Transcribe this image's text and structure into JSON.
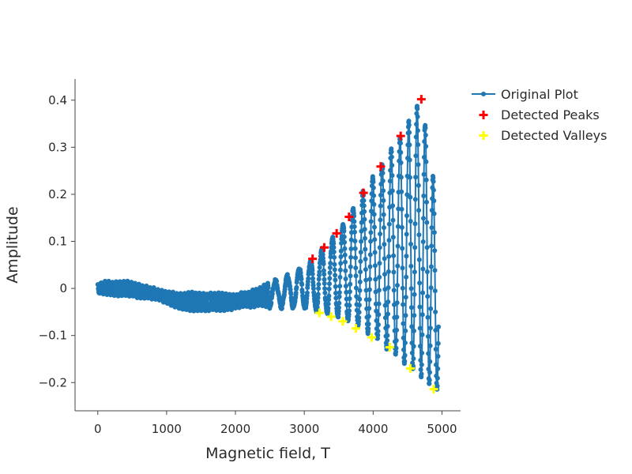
{
  "chart_data": {
    "type": "scatter",
    "title": "",
    "xlabel": "Magnetic field, T",
    "ylabel": "Amplitude",
    "xlim": [
      -330,
      5270
    ],
    "ylim": [
      -0.26,
      0.445
    ],
    "x_ticks": [
      0,
      1000,
      2000,
      3000,
      4000,
      5000
    ],
    "y_ticks": [
      -0.2,
      -0.1,
      0,
      0.1,
      0.2,
      0.3,
      0.4
    ],
    "x_tick_labels": [
      "0",
      "1000",
      "2000",
      "3000",
      "4000",
      "5000"
    ],
    "y_tick_labels": [
      "−0.2",
      "−0.1",
      "0",
      "0.1",
      "0.2",
      "0.3",
      "0.4"
    ],
    "grid": false,
    "legend_position": "top-right",
    "series": [
      {
        "name": "Original Plot",
        "mode": "lines+markers",
        "color": "#1f77b4",
        "x_range": [
          0,
          4950
        ],
        "point_count": 1400,
        "envelope": [
          {
            "x": 0,
            "upper": 0.012,
            "lower": -0.012
          },
          {
            "x": 400,
            "upper": 0.013,
            "lower": -0.013
          },
          {
            "x": 800,
            "upper": 0.0,
            "lower": -0.022
          },
          {
            "x": 1200,
            "upper": -0.01,
            "lower": -0.045
          },
          {
            "x": 1600,
            "upper": -0.013,
            "lower": -0.045
          },
          {
            "x": 2000,
            "upper": -0.012,
            "lower": -0.043
          },
          {
            "x": 2400,
            "upper": 0.005,
            "lower": -0.04
          },
          {
            "x": 2800,
            "upper": 0.03,
            "lower": -0.04
          },
          {
            "x": 3120,
            "upper": 0.062,
            "lower": -0.045
          },
          {
            "x": 3470,
            "upper": 0.118,
            "lower": -0.06
          },
          {
            "x": 3860,
            "upper": 0.205,
            "lower": -0.085
          },
          {
            "x": 4400,
            "upper": 0.325,
            "lower": -0.15
          },
          {
            "x": 4700,
            "upper": 0.403,
            "lower": -0.19
          },
          {
            "x": 4950,
            "upper": 0.165,
            "lower": -0.215
          }
        ]
      },
      {
        "name": "Detected Peaks",
        "mode": "markers",
        "marker": "cross",
        "color": "#ff0000",
        "x": [
          3120,
          3290,
          3470,
          3650,
          3860,
          4110,
          4400,
          4700
        ],
        "y": [
          0.063,
          0.087,
          0.117,
          0.152,
          0.203,
          0.259,
          0.324,
          0.402
        ]
      },
      {
        "name": "Detected Valleys",
        "mode": "markers",
        "marker": "cross",
        "color": "#ffff00",
        "x": [
          3220,
          3390,
          3560,
          3750,
          3980,
          4240,
          4540,
          4880
        ],
        "y": [
          -0.052,
          -0.06,
          -0.07,
          -0.085,
          -0.104,
          -0.125,
          -0.17,
          -0.214
        ]
      }
    ]
  }
}
